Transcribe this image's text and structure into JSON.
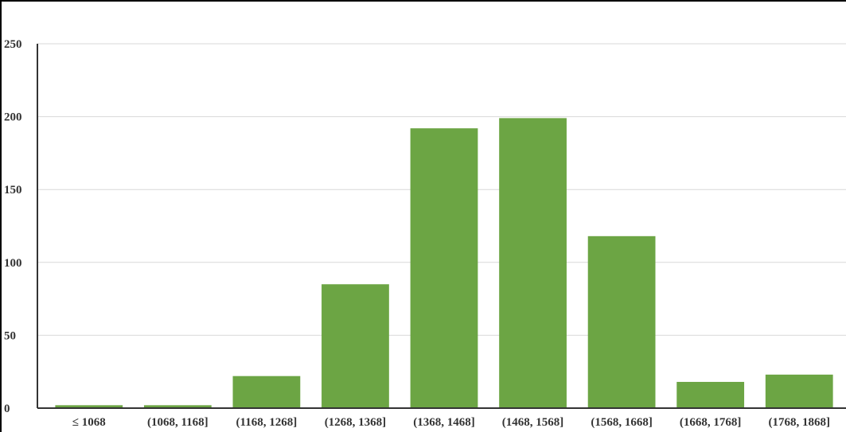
{
  "chart_data": {
    "type": "bar",
    "categories": [
      "≤ 1068",
      "(1068, 1168]",
      "(1168, 1268]",
      "(1268, 1368]",
      "(1368, 1468]",
      "(1468, 1568]",
      "(1568, 1668]",
      "(1668, 1768]",
      "(1768, 1868]"
    ],
    "values": [
      2,
      2,
      22,
      85,
      192,
      199,
      118,
      18,
      23
    ],
    "title": "",
    "xlabel": "",
    "ylabel": "",
    "ylim": [
      0,
      250
    ],
    "yticks": [
      0,
      50,
      100,
      150,
      200,
      250
    ],
    "grid": true,
    "bar_color": "#6ca544",
    "grid_color": "#d9d9d9",
    "axis_color": "#333333"
  }
}
